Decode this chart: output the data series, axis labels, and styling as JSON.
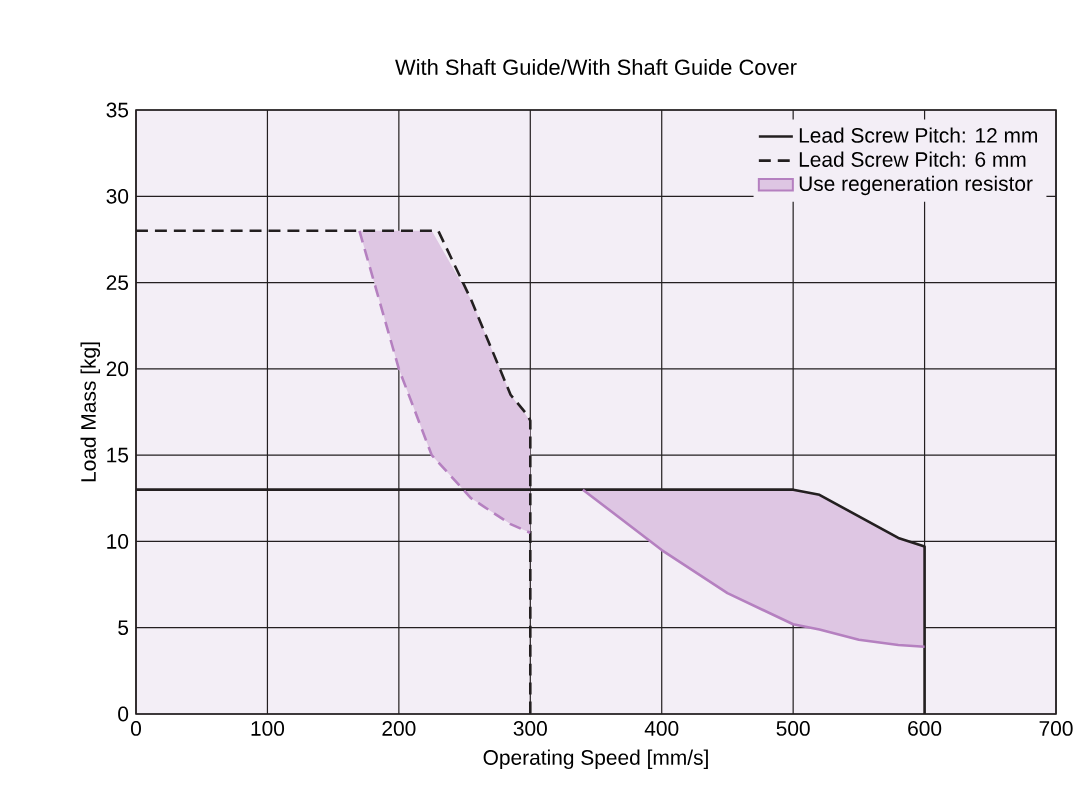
{
  "chart_data": {
    "type": "line",
    "title": "With Shaft Guide/With Shaft Guide Cover",
    "xlabel": "Operating Speed [mm/s]",
    "ylabel": "Load Mass [kg]",
    "xlim": [
      0,
      700
    ],
    "ylim": [
      0,
      35
    ],
    "xticks": [
      0,
      100,
      200,
      300,
      400,
      500,
      600,
      700
    ],
    "yticks": [
      0,
      5,
      10,
      15,
      20,
      25,
      30,
      35
    ],
    "grid": true,
    "legend": "top right",
    "series": [
      {
        "name": "Lead Screw Pitch: 12 mm",
        "color": "#231f20",
        "line_style": "solid",
        "x": [
          0,
          500,
          520,
          580,
          600,
          600
        ],
        "values": [
          13,
          13,
          12.7,
          10.2,
          9.7,
          0
        ]
      },
      {
        "name": "Lead Screw Pitch:   6 mm",
        "color": "#231f20",
        "line_style": "dashed",
        "x": [
          0,
          230,
          255,
          285,
          298,
          300,
          300
        ],
        "values": [
          28,
          28,
          24,
          18.5,
          17.3,
          17,
          0
        ]
      },
      {
        "name": "Use regeneration resistor",
        "color": "#b580c0",
        "line_style": "dashed",
        "x": [
          170,
          200,
          225,
          255,
          285,
          300
        ],
        "values": [
          28,
          20,
          15,
          12.5,
          11,
          10.5
        ],
        "lower": [
          28,
          20,
          15,
          12.5,
          11,
          10.5
        ],
        "upper": [
          28,
          28,
          28,
          24,
          18.5,
          17
        ]
      },
      {
        "color": "#b580c0",
        "line_style": "solid",
        "x": [
          340,
          400,
          450,
          500,
          520,
          550,
          580,
          600
        ],
        "values": [
          13,
          9.5,
          7,
          5.2,
          4.9,
          4.3,
          4.0,
          3.9
        ],
        "lower": [
          13,
          9.5,
          7,
          5.2,
          4.9,
          4.3,
          4.0,
          3.9
        ],
        "upper": [
          13,
          13,
          13,
          13,
          12.7,
          11.5,
          10.2,
          9.7
        ]
      }
    ]
  }
}
